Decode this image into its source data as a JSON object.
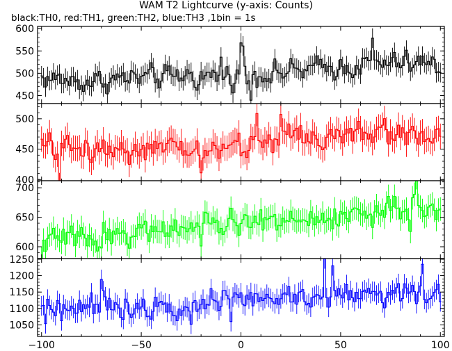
{
  "title": "WAM T2 Lightcurve (y-axis: Counts)",
  "subtitle": "black:TH0, red:TH1, green:TH2, blue:TH3 ,1bin = 1s",
  "chart_data": {
    "type": "line",
    "title": "WAM T2 Lightcurve (y-axis: Counts)",
    "subtitle": "black:TH0, red:TH1, green:TH2, blue:TH3 ,1bin = 1s",
    "xlabel": "",
    "ylabel": "Counts",
    "x_range": [
      -102,
      102
    ],
    "x_ticks": [
      -100,
      -50,
      0,
      50,
      100
    ],
    "bin_size": 1,
    "grid": false,
    "series": [
      {
        "name": "TH0",
        "color": "#000000",
        "ylim": [
          432,
          605
        ],
        "y_ticks": [
          450,
          500,
          550,
          600
        ],
        "mean_by_x": [
          [
            -100,
            490
          ],
          [
            -80,
            480
          ],
          [
            -60,
            488
          ],
          [
            -40,
            490
          ],
          [
            -20,
            492
          ],
          [
            0,
            497
          ],
          [
            20,
            502
          ],
          [
            40,
            510
          ],
          [
            60,
            518
          ],
          [
            80,
            522
          ],
          [
            100,
            515
          ]
        ],
        "amplitude": 22,
        "error": 22,
        "features": [
          [
            -10,
            35
          ],
          [
            0,
            75
          ],
          [
            0.6,
            60
          ],
          [
            5,
            -50
          ],
          [
            3,
            -25
          ],
          [
            66,
            60
          ],
          [
            91,
            30
          ],
          [
            -27,
            25
          ]
        ]
      },
      {
        "name": "TH1",
        "color": "#ff0000",
        "ylim": [
          398,
          525
        ],
        "y_ticks": [
          400,
          450,
          500
        ],
        "mean_by_x": [
          [
            -100,
            452
          ],
          [
            -60,
            450
          ],
          [
            -20,
            447
          ],
          [
            0,
            455
          ],
          [
            20,
            470
          ],
          [
            50,
            472
          ],
          [
            80,
            478
          ],
          [
            100,
            472
          ]
        ],
        "amplitude": 18,
        "error": 21,
        "features": [
          [
            -91,
            -50
          ],
          [
            -20,
            -30
          ],
          [
            0,
            -25
          ],
          [
            8,
            40
          ],
          [
            20,
            35
          ],
          [
            30,
            32
          ],
          [
            -60,
            28
          ]
        ]
      },
      {
        "name": "TH2",
        "color": "#00ff00",
        "ylim": [
          580,
          712
        ],
        "y_ticks": [
          600,
          650,
          700
        ],
        "mean_by_x": [
          [
            -100,
            610
          ],
          [
            -80,
            617
          ],
          [
            -60,
            622
          ],
          [
            -40,
            630
          ],
          [
            -20,
            632
          ],
          [
            0,
            640
          ],
          [
            20,
            643
          ],
          [
            40,
            646
          ],
          [
            60,
            655
          ],
          [
            80,
            662
          ],
          [
            100,
            668
          ]
        ],
        "amplitude": 17,
        "error": 20,
        "features": [
          [
            -100,
            -35
          ],
          [
            -70,
            -30
          ],
          [
            -20,
            -30
          ],
          [
            10,
            40
          ],
          [
            47,
            30
          ],
          [
            85,
            -35
          ],
          [
            88,
            30
          ]
        ]
      },
      {
        "name": "TH3",
        "color": "#0000ff",
        "ylim": [
          1015,
          1252
        ],
        "y_ticks": [
          1050,
          1100,
          1150,
          1200,
          1250
        ],
        "mean_by_x": [
          [
            -100,
            1113
          ],
          [
            -60,
            1108
          ],
          [
            -40,
            1113
          ],
          [
            -20,
            1120
          ],
          [
            0,
            1125
          ],
          [
            20,
            1132
          ],
          [
            50,
            1142
          ],
          [
            80,
            1150
          ],
          [
            100,
            1142
          ]
        ],
        "amplitude": 30,
        "error": 30,
        "features": [
          [
            -98,
            -55
          ],
          [
            -90,
            -45
          ],
          [
            -70,
            70
          ],
          [
            -25,
            -60
          ],
          [
            42,
            95
          ],
          [
            46,
            80
          ],
          [
            91,
            70
          ],
          [
            -5,
            -45
          ]
        ]
      }
    ]
  }
}
